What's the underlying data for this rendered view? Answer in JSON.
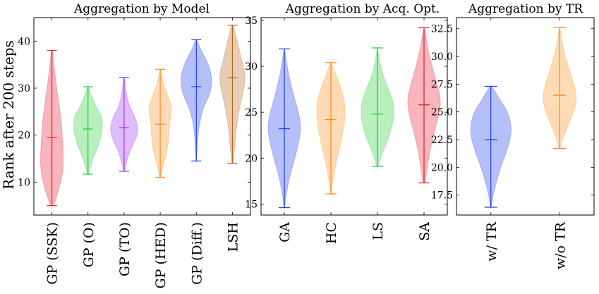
{
  "chart_data": [
    {
      "type": "violin",
      "title": "Aggregation by Model",
      "ylabel": "Rank after 200 steps",
      "xlabel": "",
      "ylim": [
        3,
        45
      ],
      "yticks": [
        10,
        20,
        30,
        40
      ],
      "series": [
        {
          "name": "GP (SSK)",
          "color": "#e8192c",
          "min": 5,
          "median": 19.5,
          "max": 38,
          "density": [
            [
              5,
              0.1
            ],
            [
              7,
              0.3
            ],
            [
              10,
              0.55
            ],
            [
              13,
              0.7
            ],
            [
              16,
              0.7
            ],
            [
              19,
              0.65
            ],
            [
              22,
              0.6
            ],
            [
              25,
              0.5
            ],
            [
              28,
              0.38
            ],
            [
              31,
              0.25
            ],
            [
              34,
              0.16
            ],
            [
              36,
              0.08
            ],
            [
              38,
              0.04
            ]
          ]
        },
        {
          "name": "GP (O)",
          "color": "#1fcc33",
          "min": 11.7,
          "median": 21.3,
          "max": 30.3,
          "density": [
            [
              11.7,
              0.03
            ],
            [
              13,
              0.12
            ],
            [
              15,
              0.3
            ],
            [
              17,
              0.55
            ],
            [
              19,
              0.75
            ],
            [
              21,
              0.88
            ],
            [
              23,
              0.9
            ],
            [
              24.5,
              0.78
            ],
            [
              26,
              0.5
            ],
            [
              28,
              0.25
            ],
            [
              29.5,
              0.1
            ],
            [
              30.3,
              0.03
            ]
          ]
        },
        {
          "name": "GP (TO)",
          "color": "#9b30f2",
          "min": 12.3,
          "median": 21.6,
          "max": 32.3,
          "density": [
            [
              12.3,
              0.03
            ],
            [
              14,
              0.12
            ],
            [
              16,
              0.3
            ],
            [
              18,
              0.55
            ],
            [
              20,
              0.82
            ],
            [
              22,
              0.85
            ],
            [
              24,
              0.65
            ],
            [
              26,
              0.35
            ],
            [
              28,
              0.18
            ],
            [
              30,
              0.1
            ],
            [
              32.3,
              0.03
            ]
          ]
        },
        {
          "name": "GP (HED)",
          "color": "#ff8c1a",
          "min": 11,
          "median": 22.3,
          "max": 34,
          "density": [
            [
              11,
              0.03
            ],
            [
              13,
              0.15
            ],
            [
              15,
              0.3
            ],
            [
              17,
              0.45
            ],
            [
              19,
              0.52
            ],
            [
              21,
              0.55
            ],
            [
              23,
              0.6
            ],
            [
              25,
              0.7
            ],
            [
              26.5,
              0.68
            ],
            [
              28,
              0.5
            ],
            [
              30,
              0.28
            ],
            [
              32,
              0.12
            ],
            [
              34,
              0.03
            ]
          ]
        },
        {
          "name": "GP (Diff.)",
          "color": "#1a3cf0",
          "min": 14.5,
          "median": 30.3,
          "max": 40.3,
          "density": [
            [
              14.5,
              0.02
            ],
            [
              17,
              0.05
            ],
            [
              20,
              0.1
            ],
            [
              23,
              0.22
            ],
            [
              26,
              0.45
            ],
            [
              28,
              0.75
            ],
            [
              30,
              0.92
            ],
            [
              32,
              0.95
            ],
            [
              34,
              0.85
            ],
            [
              36,
              0.62
            ],
            [
              38,
              0.3
            ],
            [
              40.3,
              0.03
            ]
          ]
        },
        {
          "name": "LSH",
          "color": "#b5651d",
          "min": 14,
          "median": 32.2,
          "max": 43.4,
          "density": [
            [
              14,
              0.04
            ],
            [
              17,
              0.12
            ],
            [
              20,
              0.2
            ],
            [
              23,
              0.3
            ],
            [
              26,
              0.45
            ],
            [
              29,
              0.65
            ],
            [
              32,
              0.8
            ],
            [
              34,
              0.72
            ],
            [
              37,
              0.5
            ],
            [
              40,
              0.3
            ],
            [
              42,
              0.15
            ],
            [
              43.4,
              0.05
            ]
          ]
        }
      ]
    },
    {
      "type": "violin",
      "title": "Aggregation by Acq. Opt.",
      "xlabel": "",
      "ylabel": "",
      "ylim": [
        13.8,
        35.3
      ],
      "yticks": [
        15,
        20,
        25,
        30,
        35
      ],
      "series": [
        {
          "name": "GA",
          "color": "#1a3cf0",
          "min": 14.6,
          "median": 23.2,
          "max": 31.9,
          "density": [
            [
              14.6,
              0.02
            ],
            [
              16,
              0.1
            ],
            [
              18,
              0.3
            ],
            [
              20,
              0.6
            ],
            [
              22,
              0.85
            ],
            [
              23.5,
              0.95
            ],
            [
              25,
              0.8
            ],
            [
              27,
              0.5
            ],
            [
              29,
              0.25
            ],
            [
              31,
              0.08
            ],
            [
              31.9,
              0.02
            ]
          ]
        },
        {
          "name": "HC",
          "color": "#ff8c1a",
          "min": 16.1,
          "median": 24.2,
          "max": 30.4,
          "density": [
            [
              16.1,
              0.02
            ],
            [
              17.5,
              0.1
            ],
            [
              19.5,
              0.3
            ],
            [
              21.5,
              0.55
            ],
            [
              23.5,
              0.75
            ],
            [
              25,
              0.82
            ],
            [
              26.5,
              0.75
            ],
            [
              28,
              0.5
            ],
            [
              29.5,
              0.2
            ],
            [
              30.4,
              0.03
            ]
          ]
        },
        {
          "name": "LS",
          "color": "#1fcc33",
          "min": 19.1,
          "median": 24.8,
          "max": 32,
          "density": [
            [
              19.1,
              0.05
            ],
            [
              20.5,
              0.25
            ],
            [
              22,
              0.6
            ],
            [
              24,
              0.9
            ],
            [
              25.5,
              0.95
            ],
            [
              27,
              0.75
            ],
            [
              28.5,
              0.4
            ],
            [
              30,
              0.18
            ],
            [
              31,
              0.08
            ],
            [
              32,
              0.02
            ]
          ]
        },
        {
          "name": "SA",
          "color": "#e8192c",
          "min": 17.3,
          "median": 25.8,
          "max": 34.2,
          "density": [
            [
              17.3,
              0.05
            ],
            [
              19,
              0.18
            ],
            [
              21,
              0.35
            ],
            [
              23,
              0.6
            ],
            [
              25,
              0.88
            ],
            [
              26.5,
              0.95
            ],
            [
              28,
              0.75
            ],
            [
              30,
              0.45
            ],
            [
              32,
              0.2
            ],
            [
              34.2,
              0.03
            ]
          ]
        }
      ]
    },
    {
      "type": "violin",
      "title": "Aggregation by TR",
      "xlabel": "",
      "ylabel": "",
      "ylim": [
        15.7,
        33.5
      ],
      "yticks": [
        17.5,
        20.0,
        22.5,
        25.0,
        27.5,
        30.0,
        32.5
      ],
      "ytick_labels": [
        "17.5",
        "20.0",
        "22.5",
        "25.0",
        "27.5",
        "30.0",
        "32.5"
      ],
      "series": [
        {
          "name": "w/ TR",
          "color": "#1a3cf0",
          "min": 16.4,
          "median": 22.5,
          "max": 27.3,
          "density": [
            [
              16.4,
              0.02
            ],
            [
              17.5,
              0.1
            ],
            [
              19,
              0.3
            ],
            [
              20.5,
              0.55
            ],
            [
              22,
              0.85
            ],
            [
              23.5,
              1.0
            ],
            [
              25,
              0.8
            ],
            [
              26,
              0.45
            ],
            [
              27.3,
              0.05
            ]
          ]
        },
        {
          "name": "w/o TR",
          "color": "#ff8c1a",
          "min": 21.7,
          "median": 26.5,
          "max": 32.6,
          "density": [
            [
              21.7,
              0.03
            ],
            [
              22.5,
              0.12
            ],
            [
              24,
              0.45
            ],
            [
              25.5,
              0.75
            ],
            [
              26.5,
              0.8
            ],
            [
              27.5,
              0.68
            ],
            [
              28.5,
              0.5
            ],
            [
              29.5,
              0.35
            ],
            [
              30.5,
              0.2
            ],
            [
              31.5,
              0.1
            ],
            [
              32.6,
              0.02
            ]
          ]
        }
      ]
    }
  ]
}
